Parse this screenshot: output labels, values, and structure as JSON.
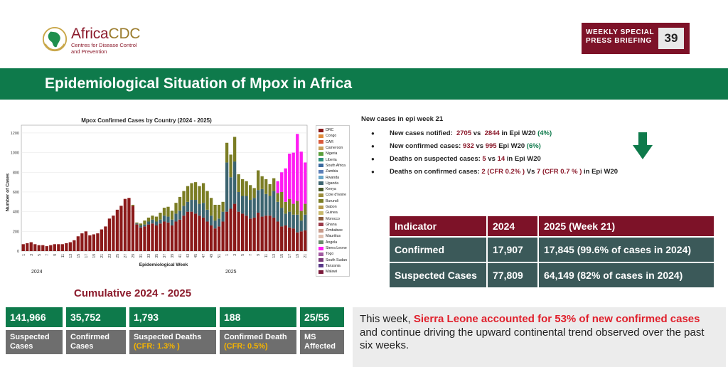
{
  "brand": {
    "name_prefix": "Africa",
    "name_suffix": "CDC",
    "subtitle_line1": "Centres for Disease Control",
    "subtitle_line2": "and Prevention"
  },
  "badge": {
    "line1": "WEEKLY SPECIAL",
    "line2": "PRESS BRIEFING",
    "page_number": "39"
  },
  "header": {
    "title": "Epidemiological Situation of Mpox in Africa"
  },
  "chart_data": {
    "type": "bar",
    "stacked": true,
    "title": "Mpox Confirmed Cases by Country (2024 - 2025)",
    "xlabel": "Epidemiological Week",
    "ylabel": "Number of Cases",
    "ylim": [
      0,
      1250
    ],
    "yticks": [
      "0",
      "200",
      "400",
      "600",
      "800",
      "1000",
      "1200"
    ],
    "year_labels": [
      "2024",
      "2025"
    ],
    "xtick_labels": [
      "1",
      "3",
      "5",
      "7",
      "9",
      "11",
      "13",
      "15",
      "17",
      "19",
      "21",
      "23",
      "25",
      "27",
      "29",
      "31",
      "33",
      "35",
      "37",
      "39",
      "41",
      "43",
      "45",
      "47",
      "49",
      "51",
      "1",
      "3",
      "5",
      "7",
      "9",
      "11",
      "13",
      "15",
      "17",
      "19",
      "21"
    ],
    "weeks_2024": 52,
    "weeks_2025": 21,
    "legend": [
      "DRC",
      "Congo",
      "CAR",
      "Cameroon",
      "Nigeria",
      "Liberia",
      "South Africa",
      "Zambia",
      "Rwanda",
      "Uganda",
      "Kenya",
      "Cote d'Ivoire",
      "Burundi",
      "Gabon",
      "Guinea",
      "Morocco",
      "Ghana",
      "Zimbabwe",
      "Mauritius",
      "Angola",
      "Sierra Leone",
      "Togo",
      "South Sudan",
      "Tanzania",
      "Malawi"
    ],
    "colors": {
      "DRC": "#8b1a1a",
      "Uganda": "#3c6470",
      "Burundi": "#7b7d24",
      "Sierra Leone": "#ff1cf3"
    },
    "series": [
      {
        "name": "DRC",
        "values": [
          70,
          80,
          90,
          70,
          60,
          60,
          50,
          60,
          70,
          70,
          70,
          80,
          90,
          110,
          150,
          180,
          200,
          160,
          170,
          180,
          220,
          250,
          330,
          360,
          420,
          460,
          530,
          540,
          460,
          270,
          240,
          250,
          270,
          280,
          260,
          280,
          300,
          290,
          260,
          300,
          320,
          360,
          400,
          400,
          380,
          360,
          340,
          300,
          260,
          230,
          250,
          300,
          400,
          430,
          480,
          400,
          380,
          360,
          330,
          340,
          390,
          350,
          360,
          360,
          340,
          300,
          250,
          260,
          240,
          230,
          190,
          200,
          210
        ]
      },
      {
        "name": "Uganda",
        "values": [
          0,
          0,
          0,
          0,
          0,
          0,
          0,
          0,
          0,
          0,
          0,
          0,
          0,
          0,
          0,
          0,
          0,
          0,
          0,
          0,
          0,
          0,
          0,
          0,
          0,
          0,
          0,
          0,
          0,
          10,
          20,
          20,
          30,
          40,
          40,
          40,
          60,
          60,
          60,
          80,
          90,
          100,
          100,
          120,
          140,
          120,
          150,
          120,
          100,
          80,
          80,
          100,
          500,
          320,
          430,
          200,
          180,
          200,
          190,
          200,
          230,
          280,
          220,
          200,
          270,
          200,
          190,
          120,
          160,
          140,
          180,
          110,
          160
        ]
      },
      {
        "name": "Burundi",
        "values": [
          0,
          0,
          0,
          0,
          0,
          0,
          0,
          0,
          0,
          0,
          0,
          0,
          0,
          0,
          0,
          0,
          0,
          0,
          0,
          0,
          0,
          0,
          0,
          0,
          0,
          0,
          0,
          0,
          10,
          10,
          20,
          40,
          40,
          40,
          50,
          70,
          80,
          100,
          90,
          110,
          140,
          150,
          160,
          170,
          180,
          180,
          200,
          190,
          180,
          160,
          140,
          100,
          200,
          230,
          250,
          180,
          170,
          150,
          150,
          100,
          200,
          130,
          150,
          120,
          130,
          90,
          160,
          120,
          130,
          110,
          140,
          100,
          110
        ]
      },
      {
        "name": "Sierra Leone",
        "values": [
          0,
          0,
          0,
          0,
          0,
          0,
          0,
          0,
          0,
          0,
          0,
          0,
          0,
          0,
          0,
          0,
          0,
          0,
          0,
          0,
          0,
          0,
          0,
          0,
          0,
          0,
          0,
          0,
          0,
          0,
          0,
          0,
          0,
          0,
          0,
          0,
          0,
          0,
          0,
          0,
          0,
          0,
          0,
          0,
          0,
          0,
          0,
          0,
          0,
          0,
          0,
          0,
          0,
          0,
          0,
          0,
          0,
          0,
          0,
          0,
          0,
          0,
          0,
          0,
          0,
          120,
          200,
          340,
          460,
          520,
          680,
          600,
          420
        ]
      }
    ]
  },
  "stats": {
    "heading": "New cases in epi week 21",
    "items": [
      {
        "label": "New cases notified:",
        "v1": "2705",
        "vs": "vs",
        "v2": "2844",
        "tail": "in Epi W20",
        "pct": "(4%)"
      },
      {
        "label": "New confirmed cases:",
        "v1": "932",
        "vs": "vs",
        "v2": "995",
        "tail": "Epi W20",
        "pct": "(6%)"
      },
      {
        "label": "Deaths on suspected cases:",
        "v1": "5",
        "vs": "vs",
        "v2": "14",
        "tail": "in Epi W20"
      },
      {
        "label": "Deaths on confirmed cases:",
        "v1": "2",
        "cfr1": "(CFR 0.2% )",
        "vs": "Vs",
        "v2": "7",
        "cfr2": "(CFR 0.7 % )",
        "tail": "in Epi W20"
      }
    ]
  },
  "indicator_table": {
    "headers": [
      "Indicator",
      "2024",
      "2025 (Week 21)"
    ],
    "rows": [
      [
        "Confirmed",
        "17,907",
        "17,845 (99.6% of cases in 2024)"
      ],
      [
        "Suspected Cases",
        "77,809",
        "64,149 (82% of cases in 2024)"
      ]
    ]
  },
  "cumulative": {
    "title": "Cumulative 2024 - 2025",
    "cards": [
      {
        "value": "141,966",
        "label": "Suspected Cases"
      },
      {
        "value": "35,752",
        "label": "Confirmed Cases"
      },
      {
        "value": "1,793",
        "label": "Suspected Deaths",
        "sub": "(CFR: 1.3% )"
      },
      {
        "value": "188",
        "label": "Confirmed Death",
        "sub": "(CFR: 0.5%)"
      },
      {
        "value": "25/55",
        "label": "MS Affected"
      }
    ]
  },
  "note": {
    "intro": "This week, ",
    "highlight": "Sierra Leone accounted for 53% of new confirmed cases",
    "rest": " and continue driving the upward continental trend observed over the past six weeks."
  }
}
